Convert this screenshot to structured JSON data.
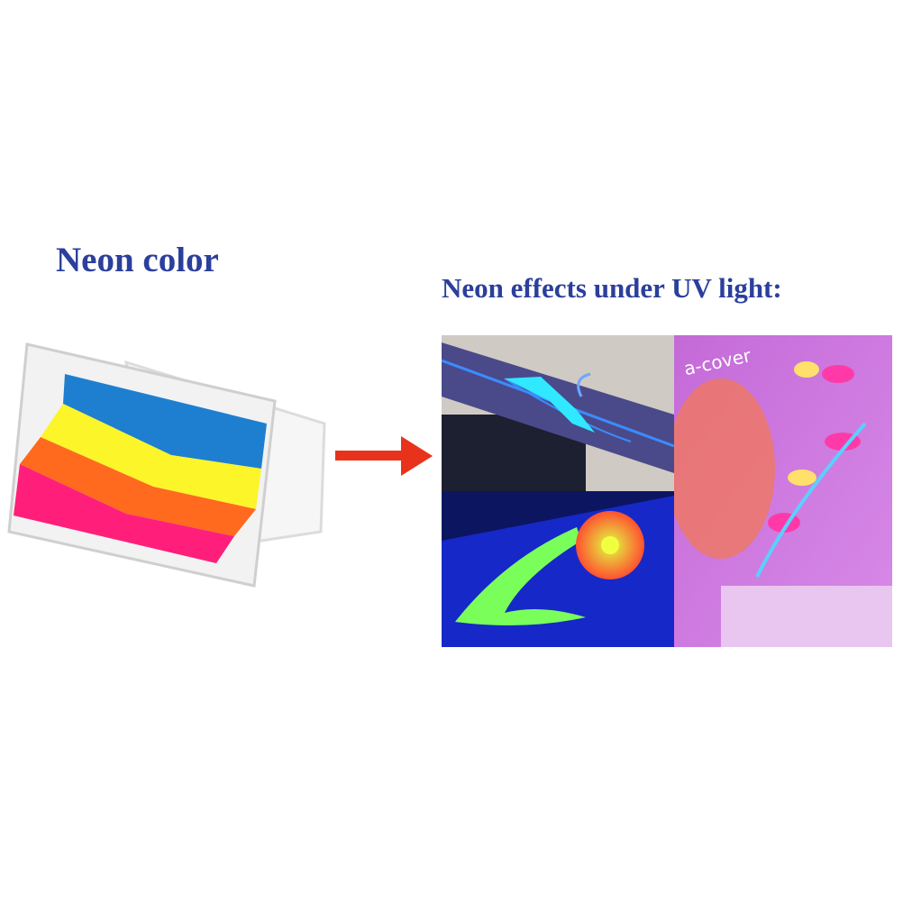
{
  "left": {
    "title": "Neon color",
    "palette_stripes": [
      {
        "name": "blue",
        "color": "#1e7fd0"
      },
      {
        "name": "yellow",
        "color": "#fbf52a"
      },
      {
        "name": "orange",
        "color": "#ff6a1e"
      },
      {
        "name": "pink",
        "color": "#ff1f7a"
      }
    ]
  },
  "arrow": {
    "icon": "arrow-right-icon",
    "color": "#e8321c"
  },
  "right": {
    "title": "Neon effects under UV light:",
    "photo_text": "a-cover",
    "photos": [
      "uv-fish-arm",
      "uv-flower-arm",
      "uv-body-painting"
    ]
  },
  "title_color": "#2b3f9c"
}
